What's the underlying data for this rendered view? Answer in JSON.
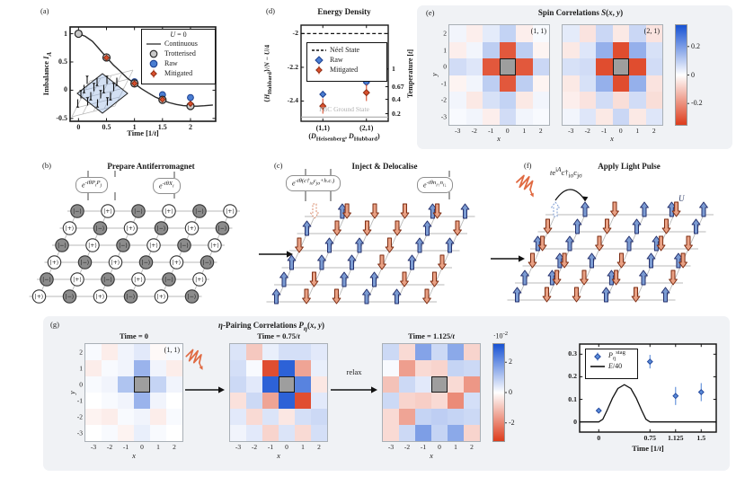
{
  "colors": {
    "raw_blue": "#4a7dd1",
    "raw_blue_edge": "#1d4091",
    "mitigated_red": "#d9502e",
    "mitigated_red_edge": "#8e2c12",
    "trotterised_gray": "#c9c9c9",
    "trotterised_edge": "#222222",
    "cmap_blue": "#1752d3",
    "cmap_red": "#dd3c1c",
    "arrow_up": "#7b9bd2",
    "arrow_up_edge": "#25316e",
    "arrow_down": "#e9a184",
    "arrow_down_edge": "#7d2c12",
    "pulse_orange": "#e06a42",
    "panel_bg": "#f0f2f5",
    "mask_gray": "#9e9e9e"
  },
  "panel_a": {
    "label": "(a)",
    "ylabel": "Imbalance <i>I<sub>A</sub></i>",
    "xlabel": "Time [1/<i>t</i>]",
    "legend_title": "<i>U</i> = 0",
    "legend": [
      {
        "marker": "line",
        "color": "#555555",
        "label": "Continuous"
      },
      {
        "marker": "circle",
        "color": "#c9c9c9",
        "edge": "#222222",
        "label": "Trotterised"
      },
      {
        "marker": "circle",
        "color": "#4a7dd1",
        "edge": "#1d4091",
        "label": "Raw"
      },
      {
        "marker": "diamond_err",
        "color": "#d9502e",
        "edge": "#8e2c12",
        "label": "Mitigated"
      }
    ],
    "chart_data": {
      "type": "line+scatter",
      "xlim": [
        -0.15,
        2.45
      ],
      "ylim": [
        -0.55,
        1.12
      ],
      "xticks": [
        "0",
        "0.5",
        "1",
        "1.5",
        "2"
      ],
      "xtick_vals": [
        0,
        0.5,
        1,
        1.5,
        2
      ],
      "yticks": [
        "1",
        "0.5",
        "0",
        "-0.5"
      ],
      "ytick_vals": [
        1,
        0.5,
        0,
        -0.5
      ],
      "series": [
        {
          "name": "Continuous",
          "type": "line",
          "x": [
            0,
            0.12,
            0.25,
            0.37,
            0.5,
            0.62,
            0.75,
            0.87,
            1,
            1.12,
            1.25,
            1.37,
            1.5,
            1.62,
            1.75,
            1.87,
            2,
            2.12,
            2.25,
            2.4
          ],
          "y": [
            1,
            0.955,
            0.865,
            0.73,
            0.58,
            0.45,
            0.33,
            0.215,
            0.12,
            0.03,
            -0.05,
            -0.12,
            -0.175,
            -0.22,
            -0.252,
            -0.272,
            -0.28,
            -0.282,
            -0.275,
            -0.262
          ]
        },
        {
          "name": "Trotterised",
          "type": "scatter",
          "x": [
            0,
            0.5,
            1,
            1.5,
            2
          ],
          "y": [
            1,
            0.58,
            0.12,
            -0.17,
            -0.28
          ]
        },
        {
          "name": "Raw",
          "type": "scatter",
          "x": [
            0.5,
            1,
            1.5,
            2
          ],
          "y": [
            0.58,
            0.15,
            -0.08,
            -0.13
          ],
          "err": [
            0.015,
            0.015,
            0.02,
            0.02
          ]
        },
        {
          "name": "Mitigated",
          "type": "scatter",
          "x": [
            0.5,
            1,
            1.5,
            2
          ],
          "y": [
            0.575,
            0.12,
            -0.165,
            -0.24
          ],
          "err": [
            0.02,
            0.02,
            0.025,
            0.035
          ]
        }
      ]
    }
  },
  "panel_d": {
    "label": "(d)",
    "title": "Energy Density",
    "ylabel": "⟨<i>H</i><sub>Hubbard</sub>⟩/<i>N</i> − <i>U</i>/4",
    "right_label": "Temperature [<i>t</i>]",
    "xlabel": "(<i>D</i><sub>Heisenberg</sub>, <i>D</i><sub>Hubbard</sub>)",
    "pbc_label": "PBC Ground State",
    "legend": [
      {
        "marker": "dash",
        "color": "#111111",
        "label": "Néel State"
      },
      {
        "marker": "diamond",
        "color": "#4a7dd1",
        "edge": "#1d4091",
        "label": "Raw"
      },
      {
        "marker": "diamond_err",
        "color": "#d9502e",
        "edge": "#8e2c12",
        "label": "Mitigated"
      }
    ],
    "chart_data": {
      "type": "scatter",
      "categories": [
        "(1,1)",
        "(2,1)"
      ],
      "ylim": [
        -2.52,
        -1.95
      ],
      "yticks": [
        "-2",
        "-2.2",
        "-2.4"
      ],
      "ytick_vals": [
        -2,
        -2.2,
        -2.4
      ],
      "right_ticks": [
        {
          "label": "1",
          "value": -2.21
        },
        {
          "label": "0.67",
          "value": -2.315
        },
        {
          "label": "0.4",
          "value": -2.39
        },
        {
          "label": "0.2",
          "value": -2.475
        }
      ],
      "neel_value": -2.0,
      "pbc_value": -2.495,
      "series": [
        {
          "name": "Raw",
          "values": [
            -2.36,
            -2.29
          ],
          "err": [
            0.02,
            0.02
          ]
        },
        {
          "name": "Mitigated",
          "values": [
            -2.43,
            -2.35
          ],
          "err": [
            0.045,
            0.05
          ]
        }
      ]
    }
  },
  "panel_e": {
    "label": "(e)",
    "title": "Spin Correlations <i>S</i>(<i>x</i>, <i>y</i>)",
    "xletter": "<i>x</i>",
    "yletter": "<i>y</i>",
    "xticks": [
      "-3",
      "-2",
      "-1",
      "0",
      "1",
      "2"
    ],
    "yticks": [
      "2",
      "1",
      "0",
      "-1",
      "-2",
      "-3"
    ],
    "colorbar": {
      "ticks": [
        "0.2",
        "0",
        "-0.2"
      ],
      "tick_vals": [
        0.2,
        0,
        -0.2
      ],
      "vmax": 0.35
    },
    "maps": [
      {
        "tag": "(1, 1)",
        "matrix": [
          [
            0.02,
            -0.03,
            0.04,
            0.09,
            -0.03,
            0.01
          ],
          [
            -0.03,
            0.02,
            0.1,
            -0.3,
            0.1,
            -0.02
          ],
          [
            0.07,
            0.05,
            -0.3,
            null,
            -0.3,
            0.08
          ],
          [
            -0.02,
            0.02,
            0.1,
            -0.3,
            0.1,
            -0.02
          ],
          [
            0.02,
            -0.04,
            0.06,
            0.09,
            -0.04,
            0.02
          ],
          [
            0.01,
            0.02,
            -0.03,
            0.07,
            0.02,
            0.01
          ]
        ]
      },
      {
        "tag": "(2, 1)",
        "matrix": [
          [
            0.04,
            -0.05,
            0.08,
            -0.04,
            0.08,
            -0.05
          ],
          [
            -0.04,
            0.05,
            0.16,
            -0.32,
            0.16,
            0.06
          ],
          [
            0.06,
            0.07,
            -0.32,
            null,
            -0.32,
            0.07
          ],
          [
            -0.04,
            0.06,
            0.16,
            -0.32,
            0.16,
            -0.05
          ],
          [
            -0.03,
            -0.05,
            0.07,
            -0.06,
            0.07,
            -0.06
          ],
          [
            0.02,
            0.05,
            -0.04,
            0.08,
            -0.04,
            0.05
          ]
        ]
      }
    ]
  },
  "panel_b": {
    "label": "(b)",
    "title": "Prepare Antiferromagnet",
    "gate1": "e<sup>-iθP<sub>i</sub>P<sub>j</sub></sup>",
    "gate2": "e<sup>-iθX<sub>i</sub></sup>",
    "minus_ket": "|−⟩",
    "plus_ket": "|+⟩",
    "sites": [
      [
        "m",
        "p",
        "m",
        "p",
        "m",
        "p"
      ],
      [
        "p",
        "m",
        "p",
        "m",
        "p",
        "m"
      ],
      [
        "m",
        "p",
        "m",
        "p",
        "m",
        "p"
      ],
      [
        "p",
        "m",
        "p",
        "m",
        "p",
        "m"
      ],
      [
        "m",
        "p",
        "m",
        "p",
        "m",
        "p"
      ],
      [
        "p",
        "m",
        "p",
        "m",
        "p",
        "m"
      ]
    ]
  },
  "panel_c": {
    "label": "(c)",
    "title": "Inject & Delocalise",
    "gate1": "e<sup>-iθ(c†<sub>iσ</sub>c<sub>jσ</sub>+h.c.)</sup>",
    "gate2": "e<sup>-iθn<sub>i↑</sub>n<sub>i↓</sub></sup>",
    "sites": [
      [
        "dashed_down",
        "updown",
        "down",
        "down",
        "updown",
        "up"
      ],
      [
        "up",
        "down",
        "down",
        "down",
        "up",
        "down"
      ],
      [
        "down",
        "up",
        "up",
        "down",
        "up",
        "up"
      ],
      [
        "up",
        "up",
        "up",
        "down",
        "up",
        "down"
      ],
      [
        "up",
        "down",
        "up",
        "up",
        "down",
        "down"
      ],
      [
        "up",
        "down",
        "down",
        "up",
        "up",
        "down"
      ]
    ]
  },
  "panel_f": {
    "label": "(f)",
    "title": "Apply Light Pulse",
    "hop": "<i>t</i>e<sup>i<i>A</i></sup>c†<sub>iσ</sub>c<sub>jσ</sub>",
    "u": "<i>U</i>",
    "sites": [
      [
        "dashed_up",
        "up",
        "down",
        "up",
        "updown",
        "up"
      ],
      [
        "down",
        "up",
        "down",
        "up",
        "down",
        "up"
      ],
      [
        "updown",
        "up",
        "down",
        "up",
        "updown",
        "down"
      ],
      [
        "down",
        "updown",
        "up",
        "down",
        "up",
        "updown"
      ],
      [
        "up",
        "updown",
        "down",
        "updown",
        "up",
        "down"
      ],
      [
        "up",
        "down",
        "down",
        "up",
        "down",
        "up"
      ]
    ]
  },
  "panel_g": {
    "label": "(g)",
    "title": "<i>η</i>-Pairing Correlations <i>P<sub>η</sub></i>(<i>x</i>, <i>y</i>)",
    "relax": "relax",
    "tag": "(1, 1)",
    "map_titles": [
      "Time = 0",
      "Time = 0.75/<i>t</i>",
      "Time = 1.125/<i>t</i>"
    ],
    "xletter": "<i>x</i>",
    "yletter": "<i>y</i>",
    "xticks": [
      "-3",
      "-2",
      "-1",
      "0",
      "1",
      "2"
    ],
    "yticks": [
      "2",
      "1",
      "0",
      "-1",
      "-2",
      "-3"
    ],
    "colorbar": {
      "exp": "·10<sup>-2</sup>",
      "ticks": [
        "2",
        "0",
        "-2"
      ],
      "tick_vals": [
        2,
        0,
        -2
      ],
      "vmax": 3.2
    },
    "maps": [
      [
        [
          0.1,
          -0.3,
          0.2,
          0.4,
          -0.1,
          0.1
        ],
        [
          -0.3,
          0.1,
          0.2,
          1.4,
          0.2,
          -0.3
        ],
        [
          0.1,
          0.2,
          1.1,
          null,
          0.8,
          0.2
        ],
        [
          0.0,
          0.1,
          0.2,
          1.4,
          0.2,
          0.0
        ],
        [
          -0.2,
          -0.3,
          0.1,
          0.2,
          -0.3,
          0.1
        ],
        [
          0.0,
          0.1,
          -0.2,
          0.3,
          0.1,
          0.0
        ]
      ],
      [
        [
          0.5,
          -0.9,
          0.3,
          0.6,
          0.6,
          0.4
        ],
        [
          0.6,
          0.1,
          -2.9,
          2.9,
          -1.5,
          0.3
        ],
        [
          0.7,
          0.4,
          2.9,
          null,
          2.3,
          -0.4
        ],
        [
          -0.5,
          0.7,
          -1.5,
          2.9,
          -2.9,
          0.4
        ],
        [
          0.4,
          -0.6,
          0.5,
          -0.4,
          0.6,
          0.7
        ],
        [
          0.2,
          0.4,
          -0.7,
          0.5,
          -0.6,
          0.6
        ]
      ],
      [
        [
          0.7,
          -0.6,
          1.7,
          0.7,
          1.6,
          -0.7
        ],
        [
          0.1,
          -1.6,
          -0.6,
          -0.7,
          0.8,
          0.7
        ],
        [
          -1.0,
          0.7,
          0.4,
          null,
          -0.6,
          -1.7
        ],
        [
          0.7,
          -0.7,
          -0.8,
          -0.6,
          -1.9,
          0.6
        ],
        [
          -0.6,
          -1.5,
          0.8,
          0.9,
          0.8,
          0.7
        ],
        [
          -0.6,
          0.7,
          1.8,
          0.8,
          1.6,
          -0.7
        ]
      ]
    ],
    "pulse_plot": {
      "xlabel": "Time [1/<i>t</i>]",
      "legend": [
        {
          "marker": "diamond_err",
          "color": "#5b8cd9",
          "edge": "#24499f",
          "label": "<i>P<sub>η</sub></i><sup>stag</sup>"
        },
        {
          "marker": "line",
          "color": "#111111",
          "label": "<i>E</i>/40"
        }
      ],
      "chart_data": {
        "type": "line+scatter",
        "xlim": [
          -0.28,
          1.72
        ],
        "ylim": [
          -0.045,
          0.345
        ],
        "xticks": [
          "0",
          "0.75",
          "1.125",
          "1.5"
        ],
        "xtick_vals": [
          0,
          0.75,
          1.125,
          1.5
        ],
        "yticks": [
          "0",
          "0.1",
          "0.2",
          "0.3"
        ],
        "ytick_vals": [
          0,
          0.1,
          0.2,
          0.3
        ],
        "points": {
          "x": [
            0,
            0.75,
            1.125,
            1.5
          ],
          "y": [
            0.05,
            0.267,
            0.115,
            0.132
          ],
          "err": [
            0.01,
            0.03,
            0.04,
            0.04
          ]
        },
        "envelope": {
          "x": [
            -0.28,
            0,
            0.06,
            0.12,
            0.2,
            0.28,
            0.375,
            0.47,
            0.55,
            0.63,
            0.69,
            0.75,
            1.72
          ],
          "y": [
            0,
            0,
            0.012,
            0.05,
            0.105,
            0.148,
            0.165,
            0.148,
            0.105,
            0.05,
            0.012,
            0,
            0
          ]
        }
      }
    }
  }
}
